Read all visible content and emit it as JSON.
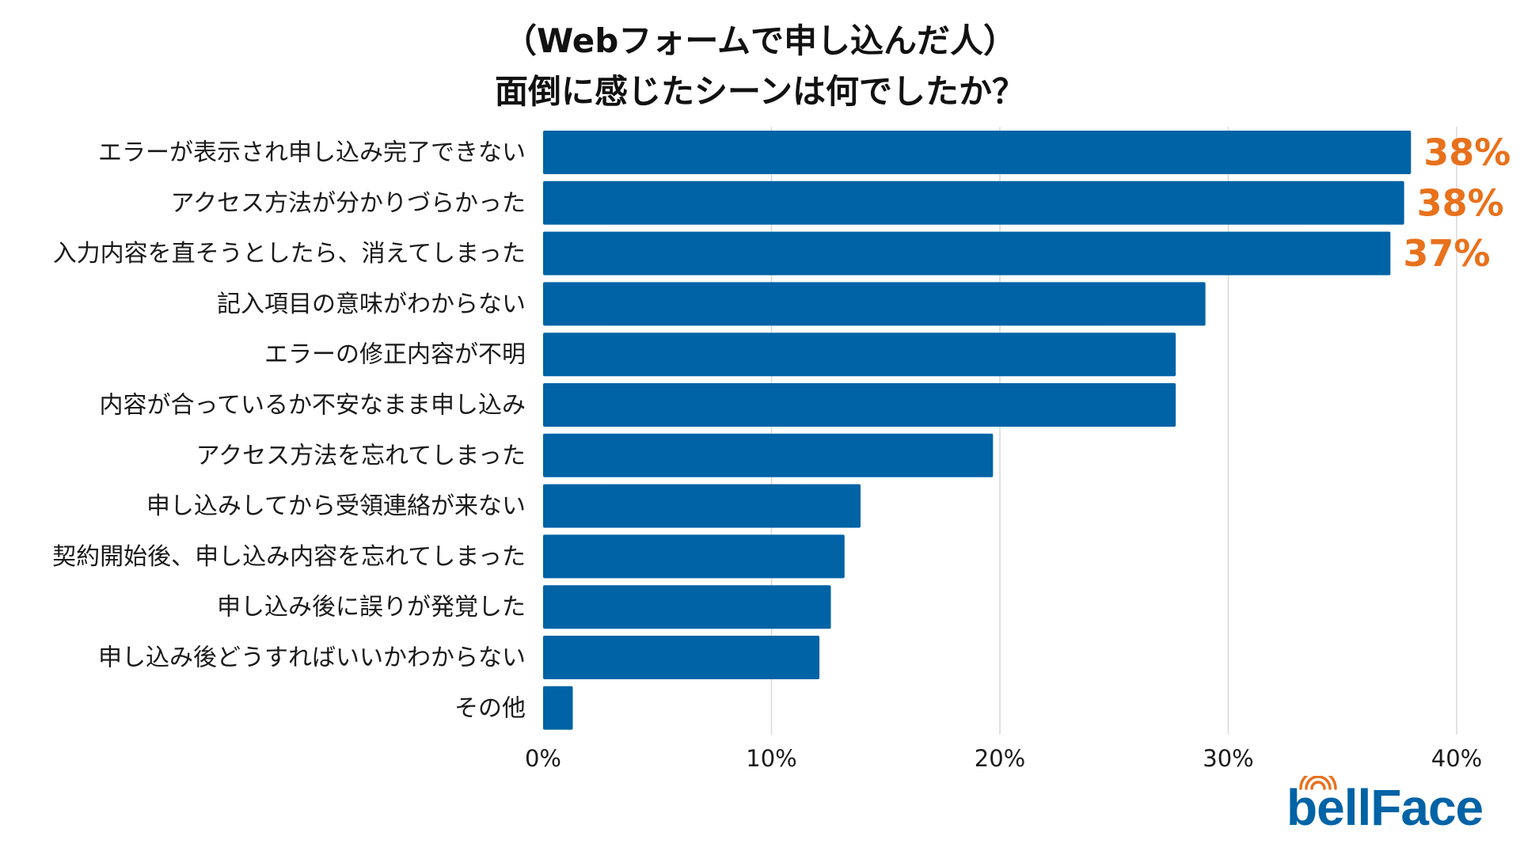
{
  "chart_data": {
    "type": "bar",
    "orientation": "horizontal",
    "title": [
      "（Webフォームで申し込んだ人）",
      "面倒に感じたシーンは何でしたか？"
    ],
    "categories": [
      "エラーが表示され申し込み完了できない",
      "アクセス方法が分かりづらかった",
      "入力内容を直そうとしたら、消えてしまった",
      "記入項目の意味がわからない",
      "エラーの修正内容が不明",
      "内容が合っているか不安なまま申し込み",
      "アクセス方法を忘れてしまった",
      "申し込みしてから受領連絡が来ない",
      "契約開始後、申し込み内容を忘れてしまった",
      "申し込み後に誤りが発覚した",
      "申し込み後どうすればいいかわからない",
      "その他"
    ],
    "values": [
      38.0,
      37.7,
      37.1,
      29.0,
      27.7,
      27.7,
      19.7,
      13.9,
      13.2,
      12.6,
      12.1,
      1.3
    ],
    "data_labels": [
      "38%",
      "38%",
      "37%",
      "",
      "",
      "",
      "",
      "",
      "",
      "",
      "",
      ""
    ],
    "xlim": [
      0,
      40
    ],
    "xticks": [
      0,
      10,
      20,
      30,
      40
    ],
    "xtick_labels": [
      "0%",
      "10%",
      "20%",
      "30%",
      "40%"
    ],
    "grid": "vertical",
    "legend": "none",
    "colors": {
      "bar": "#0063a6",
      "highlight_label": "#e8711c",
      "grid": "#d9d9d9"
    }
  },
  "brand": {
    "logo_text": "bellFace",
    "logo_color": "#0063a6",
    "logo_accent": "#e8711c"
  }
}
